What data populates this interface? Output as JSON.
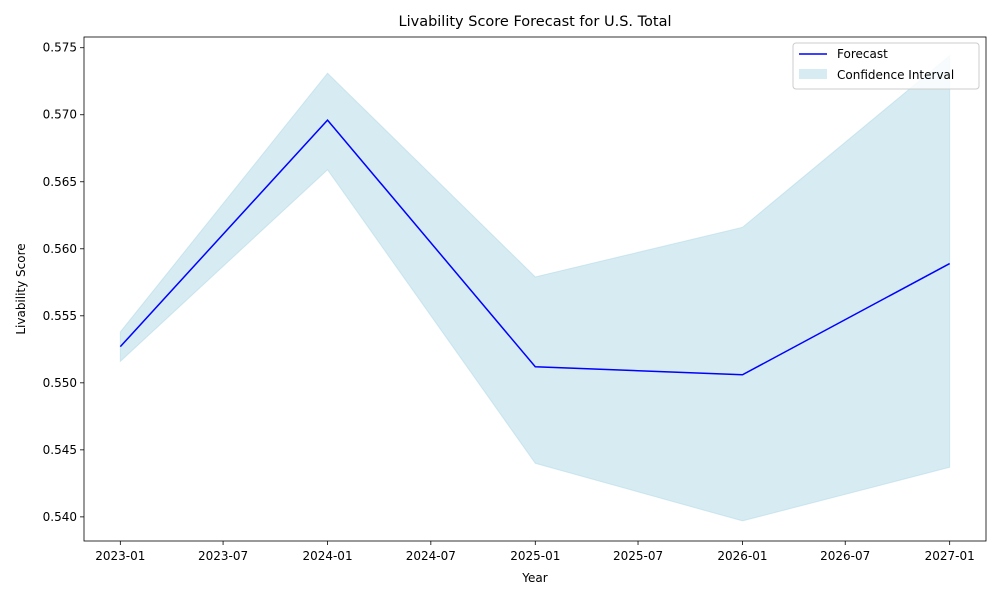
{
  "chart_data": {
    "type": "line",
    "title": "Livability Score Forecast for U.S. Total",
    "xlabel": "Year",
    "ylabel": "Livability Score",
    "x": [
      "2023-01-01",
      "2024-01-01",
      "2025-01-01",
      "2026-01-01",
      "2027-01-01"
    ],
    "series": [
      {
        "name": "Forecast",
        "color": "#0000ff",
        "values": [
          0.5527,
          0.5696,
          0.5512,
          0.5506,
          0.5589
        ]
      }
    ],
    "confidence_interval": {
      "name": "Confidence Interval",
      "color": "#add8e6",
      "lower": [
        0.5516,
        0.5659,
        0.544,
        0.5397,
        0.5437
      ],
      "upper": [
        0.5538,
        0.5731,
        0.5579,
        0.5616,
        0.5744
      ]
    },
    "xlim": [
      "2022-10-29",
      "2027-03-06"
    ],
    "ylim": [
      0.5382,
      0.5758
    ],
    "x_ticks": [
      "2023-01",
      "2023-07",
      "2024-01",
      "2024-07",
      "2025-01",
      "2025-07",
      "2026-01",
      "2026-07",
      "2027-01"
    ],
    "x_tick_dates": [
      "2023-01-01",
      "2023-07-01",
      "2024-01-01",
      "2024-07-01",
      "2025-01-01",
      "2025-07-01",
      "2026-01-01",
      "2026-07-01",
      "2027-01-01"
    ],
    "y_ticks": [
      "0.540",
      "0.545",
      "0.550",
      "0.555",
      "0.560",
      "0.565",
      "0.570",
      "0.575"
    ],
    "grid": false,
    "legend_position": "top-right"
  }
}
